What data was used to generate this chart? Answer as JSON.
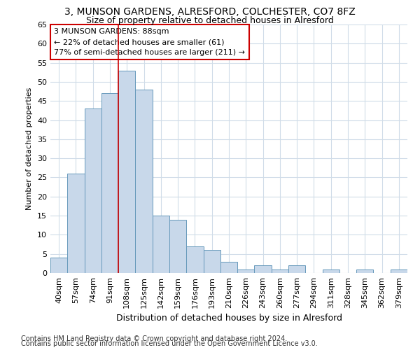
{
  "title1": "3, MUNSON GARDENS, ALRESFORD, COLCHESTER, CO7 8FZ",
  "title2": "Size of property relative to detached houses in Alresford",
  "xlabel": "Distribution of detached houses by size in Alresford",
  "ylabel": "Number of detached properties",
  "bar_labels": [
    "40sqm",
    "57sqm",
    "74sqm",
    "91sqm",
    "108sqm",
    "125sqm",
    "142sqm",
    "159sqm",
    "176sqm",
    "193sqm",
    "210sqm",
    "226sqm",
    "243sqm",
    "260sqm",
    "277sqm",
    "294sqm",
    "311sqm",
    "328sqm",
    "345sqm",
    "362sqm",
    "379sqm"
  ],
  "bar_values": [
    4,
    26,
    43,
    47,
    53,
    48,
    15,
    14,
    7,
    6,
    3,
    1,
    2,
    1,
    2,
    0,
    1,
    0,
    1,
    0,
    1
  ],
  "bar_color": "#c8d8ea",
  "bar_edge_color": "#6699bb",
  "vline_x": 3.5,
  "vline_color": "#cc0000",
  "annotation_line1": "3 MUNSON GARDENS: 88sqm",
  "annotation_line2": "← 22% of detached houses are smaller (61)",
  "annotation_line3": "77% of semi-detached houses are larger (211) →",
  "annotation_box_color": "white",
  "annotation_box_edge": "#cc0000",
  "ylim": [
    0,
    65
  ],
  "yticks": [
    0,
    5,
    10,
    15,
    20,
    25,
    30,
    35,
    40,
    45,
    50,
    55,
    60,
    65
  ],
  "footer1": "Contains HM Land Registry data © Crown copyright and database right 2024.",
  "footer2": "Contains public sector information licensed under the Open Government Licence v3.0.",
  "bg_color": "#ffffff",
  "plot_bg_color": "#ffffff",
  "grid_color": "#d0dce8",
  "title1_fontsize": 10,
  "title2_fontsize": 9,
  "xlabel_fontsize": 9,
  "ylabel_fontsize": 8,
  "tick_fontsize": 8,
  "annot_fontsize": 8,
  "footer_fontsize": 7
}
